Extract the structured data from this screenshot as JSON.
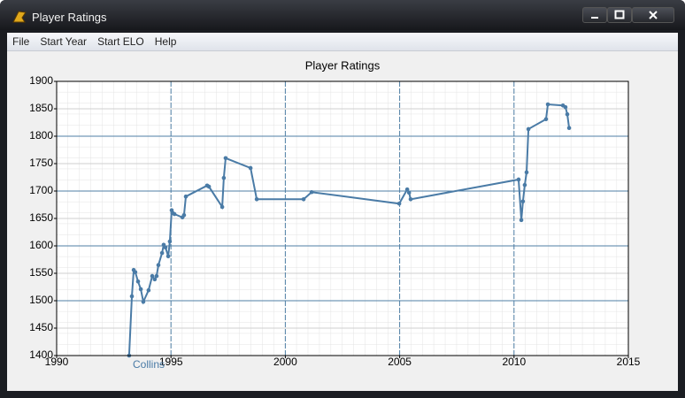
{
  "window": {
    "title": "Player Ratings"
  },
  "menu": [
    "File",
    "Start Year",
    "Start ELO",
    "Help"
  ],
  "chart_data": {
    "type": "line",
    "title": "Player Ratings",
    "x": [
      1993.17,
      1993.29,
      1993.37,
      1993.44,
      1993.56,
      1993.68,
      1993.79,
      1994.02,
      1994.18,
      1994.29,
      1994.37,
      1994.45,
      1994.61,
      1994.68,
      1994.76,
      1994.88,
      1994.95,
      1995.03,
      1995.07,
      1995.15,
      1995.5,
      1995.57,
      1995.65,
      1996.58,
      1996.66,
      1997.24,
      1997.31,
      1997.39,
      1998.48,
      1998.75,
      2000.8,
      2001.15,
      2004.98,
      2005.33,
      2005.41,
      2005.48,
      2010.2,
      2010.32,
      2010.39,
      2010.47,
      2010.55,
      2010.63,
      2011.4,
      2011.48,
      2012.14,
      2012.25,
      2012.33,
      2012.41
    ],
    "series": [
      {
        "color": "#4a7ba6",
        "values": [
          1400,
          1508,
          1556,
          1552,
          1535,
          1521,
          1498,
          1519,
          1545,
          1539,
          1545,
          1565,
          1587,
          1602,
          1597,
          1581,
          1608,
          1665,
          1660,
          1658,
          1652,
          1656,
          1690,
          1710,
          1708,
          1671,
          1724,
          1760,
          1742,
          1685,
          1685,
          1698,
          1677,
          1703,
          1697,
          1685,
          1721,
          1647,
          1681,
          1711,
          1734,
          1813,
          1831,
          1858,
          1856,
          1853,
          1840,
          1815
        ]
      }
    ],
    "xlim": [
      1990,
      2015
    ],
    "ylim": [
      1400,
      1900
    ],
    "xticks": [
      1990,
      1995,
      2000,
      2005,
      2010,
      2015
    ],
    "yticks": [
      1400,
      1450,
      1500,
      1550,
      1600,
      1650,
      1700,
      1750,
      1800,
      1850,
      1900
    ],
    "grid": true,
    "annotation": "Collins"
  }
}
